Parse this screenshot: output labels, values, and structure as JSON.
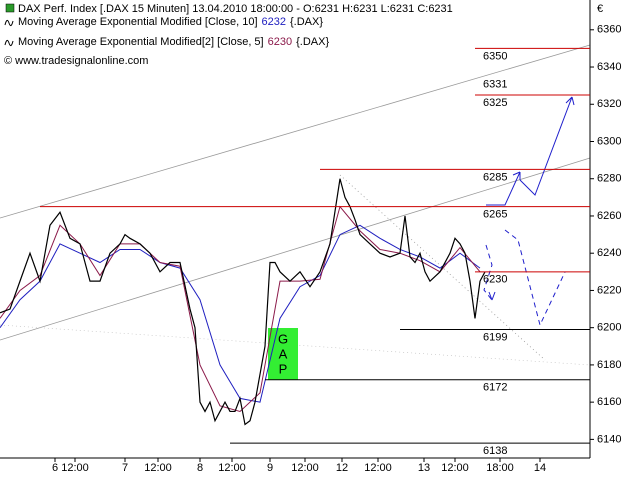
{
  "chart_data": {
    "type": "line",
    "title": "DAX Perf. Index [.DAX  15 Minuten] 13.04.2010 18:00:00 - O:6231 H:6231 L:6231 C:6231",
    "credit": "© www.tradesignalonline.com",
    "currency": "€",
    "price": {
      "color": "#000000",
      "x": [
        0,
        2,
        4,
        6,
        8,
        10,
        12,
        14,
        16,
        18,
        20,
        22,
        24,
        25,
        26,
        28,
        30,
        32,
        34,
        36,
        38,
        39,
        40,
        41,
        42,
        43,
        44,
        45,
        46,
        47,
        48,
        49,
        50,
        51,
        52,
        53,
        54,
        55,
        56,
        58,
        60,
        62,
        64,
        66,
        68,
        69,
        70,
        71,
        72,
        74,
        76,
        78,
        80,
        81,
        82,
        83,
        84,
        85,
        86,
        88,
        90,
        91,
        92,
        93,
        94,
        95,
        96,
        97
      ],
      "values": [
        6208,
        6210,
        6225,
        6240,
        6225,
        6255,
        6262,
        6248,
        6245,
        6225,
        6225,
        6240,
        6245,
        6250,
        6248,
        6245,
        6240,
        6230,
        6235,
        6235,
        6210,
        6200,
        6160,
        6155,
        6160,
        6150,
        6155,
        6160,
        6155,
        6155,
        6162,
        6148,
        6150,
        6160,
        6175,
        6190,
        6235,
        6235,
        6230,
        6225,
        6230,
        6222,
        6230,
        6245,
        6280,
        6270,
        6265,
        6258,
        6250,
        6245,
        6240,
        6238,
        6240,
        6260,
        6238,
        6235,
        6240,
        6230,
        6225,
        6230,
        6240,
        6248,
        6245,
        6240,
        6225,
        6205,
        6225,
        6230
      ]
    },
    "series": [
      {
        "name": "Moving Average Exponential Modified [Close, 10]",
        "last_value": 6232,
        "source": "{.DAX}",
        "color": "#2020c0",
        "x": [
          0,
          4,
          8,
          12,
          16,
          20,
          24,
          28,
          32,
          36,
          40,
          44,
          48,
          52,
          56,
          60,
          64,
          68,
          72,
          76,
          80,
          84,
          88,
          92,
          96
        ],
        "values": [
          6200,
          6215,
          6225,
          6245,
          6240,
          6235,
          6242,
          6242,
          6235,
          6232,
          6215,
          6180,
          6162,
          6160,
          6205,
          6222,
          6228,
          6250,
          6255,
          6248,
          6242,
          6238,
          6232,
          6240,
          6232
        ]
      },
      {
        "name": "Moving Average Exponential Modified[2] [Close, 5]",
        "last_value": 6230,
        "source": "{.DAX}",
        "color": "#8b1a4a",
        "x": [
          0,
          4,
          8,
          12,
          16,
          20,
          24,
          28,
          32,
          36,
          40,
          44,
          48,
          52,
          56,
          60,
          64,
          68,
          72,
          76,
          80,
          84,
          88,
          92,
          96
        ],
        "values": [
          6205,
          6220,
          6228,
          6255,
          6245,
          6228,
          6245,
          6245,
          6235,
          6233,
          6180,
          6158,
          6155,
          6165,
          6225,
          6225,
          6226,
          6265,
          6252,
          6242,
          6240,
          6236,
          6230,
          6243,
          6230
        ]
      }
    ],
    "levels": [
      {
        "value": 6350,
        "color": "#cc0000",
        "from": 95
      },
      {
        "value": 6325,
        "color": "#cc0000",
        "from": 95
      },
      {
        "value": 6285,
        "color": "#cc0000",
        "from": 64
      },
      {
        "value": 6265,
        "color": "#cc0000",
        "from": 8
      },
      {
        "value": 6230,
        "color": "#cc0000",
        "from": 95
      },
      {
        "value": 6199,
        "color": "#000000",
        "from": 80
      },
      {
        "value": 6172,
        "color": "#000000",
        "from": 53
      },
      {
        "value": 6138,
        "color": "#000000",
        "from": 46
      }
    ],
    "annotation_value": 6331,
    "gap_letters": [
      "G",
      "A",
      "P"
    ],
    "xlim": [
      0,
      118
    ],
    "ylim": [
      6130,
      6376
    ],
    "xticks": [
      {
        "value": 11,
        "label": "6"
      },
      {
        "value": 15,
        "label": "12:00"
      },
      {
        "value": 25,
        "label": "7"
      },
      {
        "value": 31.6,
        "label": "12:00"
      },
      {
        "value": 40,
        "label": "8"
      },
      {
        "value": 46.4,
        "label": "12:00"
      },
      {
        "value": 54,
        "label": "9"
      },
      {
        "value": 61,
        "label": "12:00"
      },
      {
        "value": 68.4,
        "label": "12"
      },
      {
        "value": 75.6,
        "label": "12:00"
      },
      {
        "value": 84.8,
        "label": "13"
      },
      {
        "value": 91,
        "label": "12:00"
      },
      {
        "value": 100,
        "label": "18:00"
      },
      {
        "value": 108,
        "label": "14"
      }
    ],
    "yticks": [
      6140,
      6160,
      6180,
      6200,
      6220,
      6240,
      6260,
      6280,
      6300,
      6320,
      6340,
      6360
    ]
  }
}
